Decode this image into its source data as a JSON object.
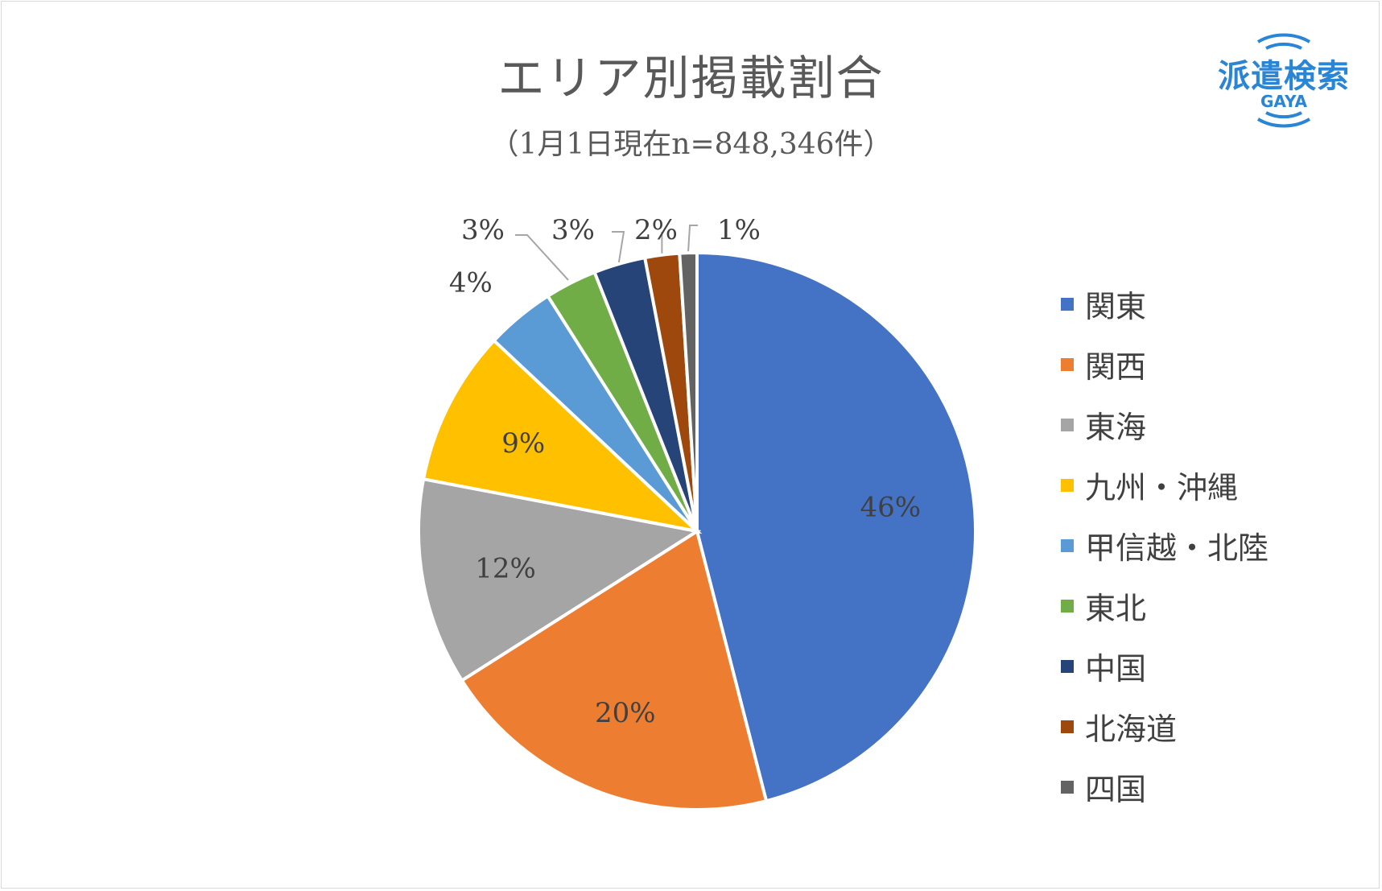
{
  "title": "エリア別掲載割合",
  "subtitle": "（1月1日現在n=848,346件）",
  "logo": {
    "text": "派遣検索",
    "sub": "GAYA"
  },
  "chart_data": {
    "type": "pie",
    "title": "エリア別掲載割合",
    "subtitle": "（1月1日現在n=848,346件）",
    "legend_position": "right",
    "slices": [
      {
        "name": "関東",
        "value": 46,
        "label": "46%",
        "color": "#4472c4"
      },
      {
        "name": "関西",
        "value": 20,
        "label": "20%",
        "color": "#ed7d31"
      },
      {
        "name": "東海",
        "value": 12,
        "label": "12%",
        "color": "#a5a5a5"
      },
      {
        "name": "九州・沖縄",
        "value": 9,
        "label": "9%",
        "color": "#ffc000"
      },
      {
        "name": "甲信越・北陸",
        "value": 4,
        "label": "4%",
        "color": "#5b9bd5"
      },
      {
        "name": "東北",
        "value": 3,
        "label": "3%",
        "color": "#70ad47"
      },
      {
        "name": "中国",
        "value": 3,
        "label": "3%",
        "color": "#264478"
      },
      {
        "name": "北海道",
        "value": 2,
        "label": "2%",
        "color": "#9e480e"
      },
      {
        "name": "四国",
        "value": 1,
        "label": "1%",
        "color": "#636363"
      }
    ]
  }
}
